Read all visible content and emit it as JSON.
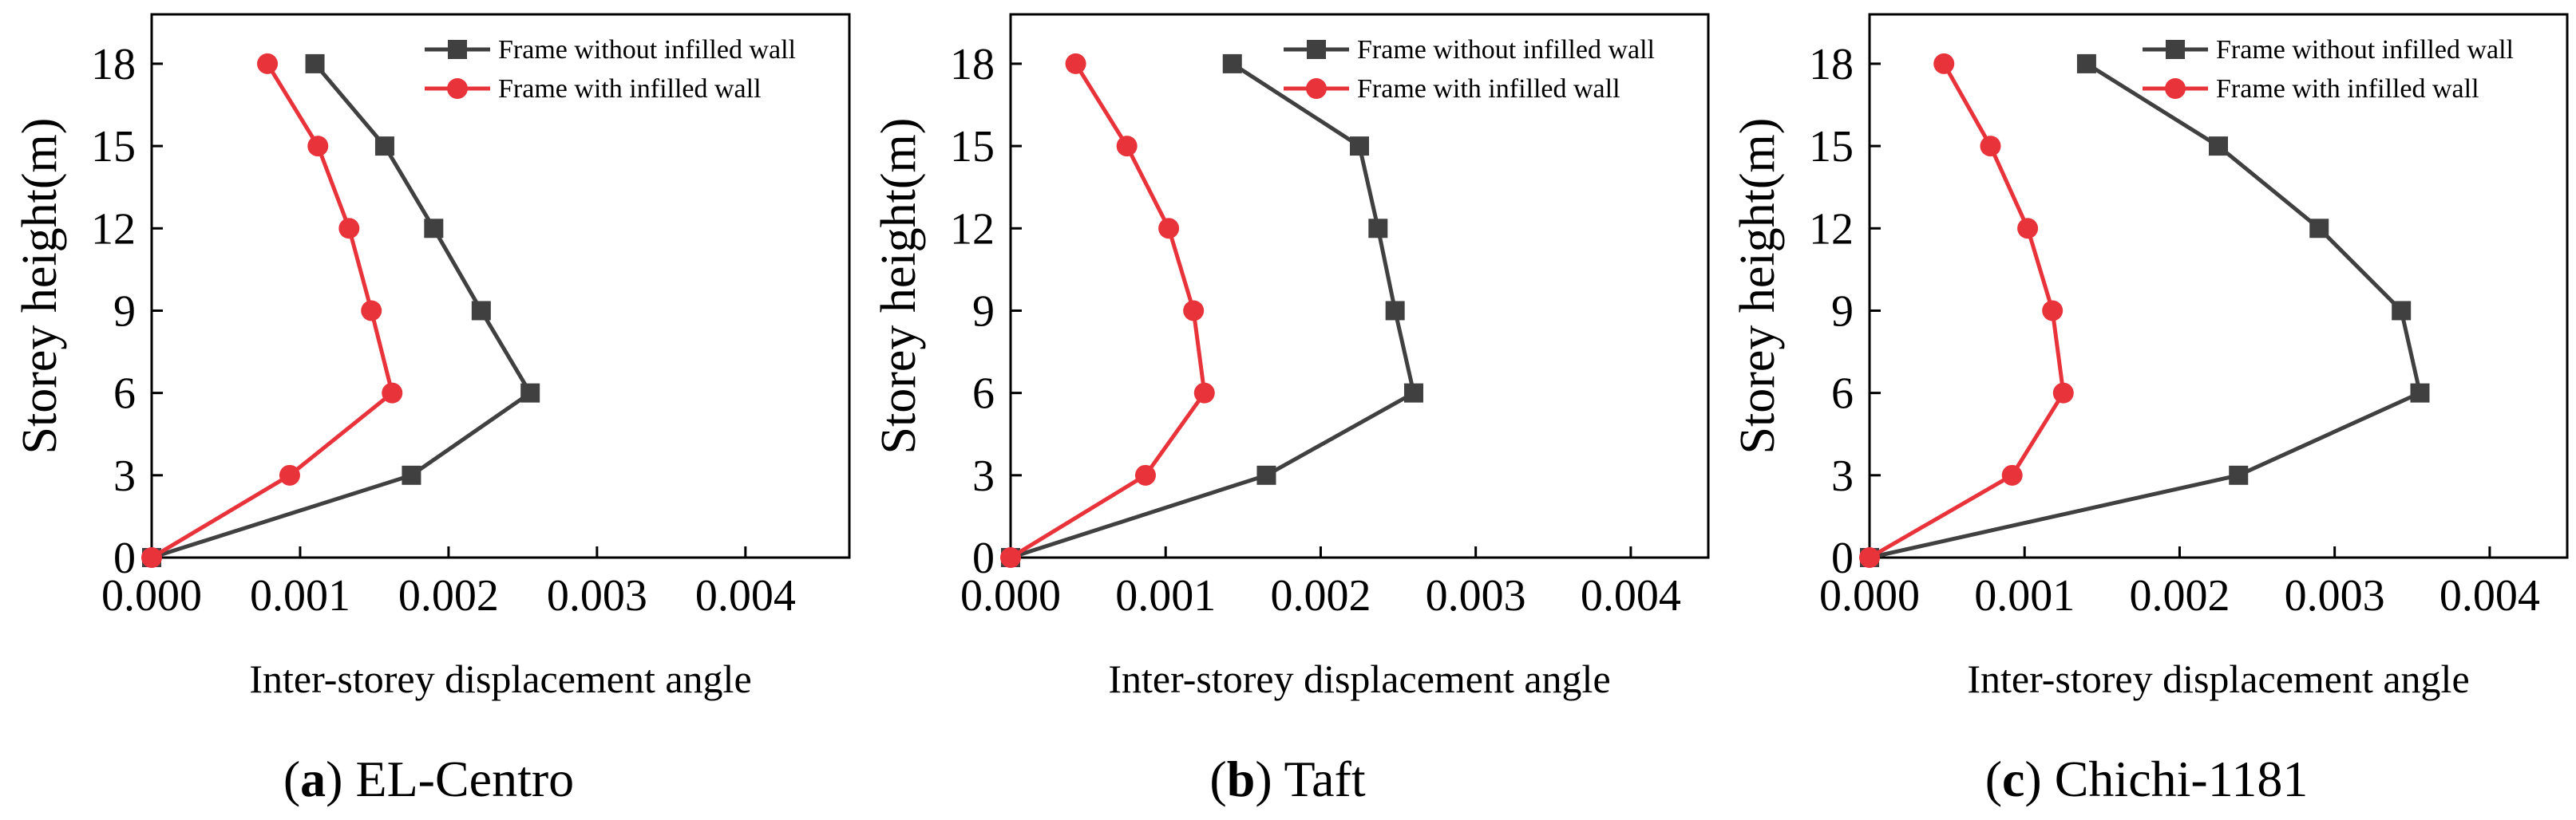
{
  "chart_data": [
    {
      "type": "line",
      "caption": {
        "open": "(",
        "letter": "a",
        "close": ")",
        "name": "EL-Centro"
      },
      "xlabel": "Inter-storey displacement angle",
      "ylabel": "Storey height(m)",
      "xlim": [
        0,
        0.0047
      ],
      "ylim": [
        0,
        19.8
      ],
      "xticks": [
        0,
        0.001,
        0.002,
        0.003,
        0.004
      ],
      "xtick_labels": [
        "0.000",
        "0.001",
        "0.002",
        "0.003",
        "0.004"
      ],
      "yticks": [
        0,
        3,
        6,
        9,
        12,
        15,
        18
      ],
      "ytick_labels": [
        "0",
        "3",
        "6",
        "9",
        "12",
        "15",
        "18"
      ],
      "legend_position": "top-right",
      "series": [
        {
          "name": "Frame without infilled wall",
          "marker": "square",
          "color": "#404040",
          "points": [
            [
              0,
              0
            ],
            [
              0.00175,
              3
            ],
            [
              0.00255,
              6
            ],
            [
              0.00222,
              9
            ],
            [
              0.0019,
              12
            ],
            [
              0.00157,
              15
            ],
            [
              0.0011,
              18
            ]
          ]
        },
        {
          "name": "Frame with infilled wall",
          "marker": "circle",
          "color": "#e8333b",
          "points": [
            [
              0,
              0
            ],
            [
              0.00093,
              3
            ],
            [
              0.00162,
              6
            ],
            [
              0.00148,
              9
            ],
            [
              0.00133,
              12
            ],
            [
              0.00112,
              15
            ],
            [
              0.00078,
              18
            ]
          ]
        }
      ]
    },
    {
      "type": "line",
      "caption": {
        "open": "(",
        "letter": "b",
        "close": ")",
        "name": "Taft"
      },
      "xlabel": "Inter-storey displacement angle",
      "ylabel": "Storey height(m)",
      "xlim": [
        0,
        0.0045
      ],
      "ylim": [
        0,
        19.8
      ],
      "xticks": [
        0,
        0.001,
        0.002,
        0.003,
        0.004
      ],
      "xtick_labels": [
        "0.000",
        "0.001",
        "0.002",
        "0.003",
        "0.004"
      ],
      "yticks": [
        0,
        3,
        6,
        9,
        12,
        15,
        18
      ],
      "ytick_labels": [
        "0",
        "3",
        "6",
        "9",
        "12",
        "15",
        "18"
      ],
      "legend_position": "top-right",
      "series": [
        {
          "name": "Frame without infilled wall",
          "marker": "square",
          "color": "#404040",
          "points": [
            [
              0,
              0
            ],
            [
              0.00165,
              3
            ],
            [
              0.0026,
              6
            ],
            [
              0.00248,
              9
            ],
            [
              0.00237,
              12
            ],
            [
              0.00225,
              15
            ],
            [
              0.00143,
              18
            ]
          ]
        },
        {
          "name": "Frame with infilled wall",
          "marker": "circle",
          "color": "#e8333b",
          "points": [
            [
              0,
              0
            ],
            [
              0.00087,
              3
            ],
            [
              0.00125,
              6
            ],
            [
              0.00118,
              9
            ],
            [
              0.00102,
              12
            ],
            [
              0.00075,
              15
            ],
            [
              0.00042,
              18
            ]
          ]
        }
      ]
    },
    {
      "type": "line",
      "caption": {
        "open": "(",
        "letter": "c",
        "close": ")",
        "name": "Chichi-1181"
      },
      "xlabel": "Inter-storey displacement angle",
      "ylabel": "Storey height(m)",
      "xlim": [
        0,
        0.0045
      ],
      "ylim": [
        0,
        19.8
      ],
      "xticks": [
        0,
        0.001,
        0.002,
        0.003,
        0.004
      ],
      "xtick_labels": [
        "0.000",
        "0.001",
        "0.002",
        "0.003",
        "0.004"
      ],
      "yticks": [
        0,
        3,
        6,
        9,
        12,
        15,
        18
      ],
      "ytick_labels": [
        "0",
        "3",
        "6",
        "9",
        "12",
        "15",
        "18"
      ],
      "legend_position": "top-right",
      "series": [
        {
          "name": "Frame without infilled wall",
          "marker": "square",
          "color": "#404040",
          "points": [
            [
              0,
              0
            ],
            [
              0.00238,
              3
            ],
            [
              0.00355,
              6
            ],
            [
              0.00343,
              9
            ],
            [
              0.0029,
              12
            ],
            [
              0.00225,
              15
            ],
            [
              0.0014,
              18
            ]
          ]
        },
        {
          "name": "Frame with infilled wall",
          "marker": "circle",
          "color": "#e8333b",
          "points": [
            [
              0,
              0
            ],
            [
              0.00092,
              3
            ],
            [
              0.00125,
              6
            ],
            [
              0.00118,
              9
            ],
            [
              0.00102,
              12
            ],
            [
              0.00078,
              15
            ],
            [
              0.00048,
              18
            ]
          ]
        }
      ]
    }
  ]
}
